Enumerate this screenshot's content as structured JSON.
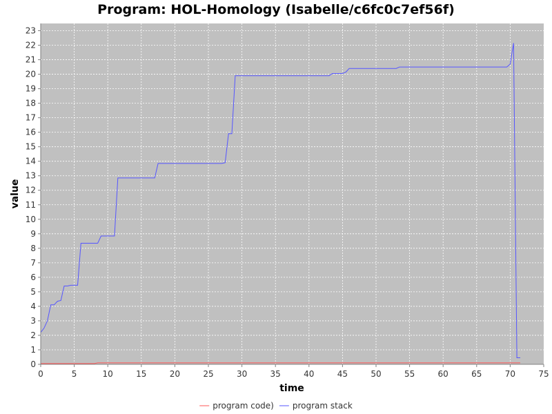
{
  "chart_data": {
    "type": "line",
    "title": "Program: HOL-Homology (Isabelle/c6fc0c7ef56f)",
    "xlabel": "time",
    "ylabel": "value",
    "xlim": [
      0,
      75
    ],
    "ylim": [
      0,
      23.5
    ],
    "x_ticks": [
      "0",
      "5",
      "10",
      "15",
      "20",
      "25",
      "30",
      "35",
      "40",
      "45",
      "50",
      "55",
      "60",
      "65",
      "70",
      "75"
    ],
    "y_ticks": [
      "0",
      "1",
      "2",
      "3",
      "4",
      "5",
      "6",
      "7",
      "8",
      "9",
      "10",
      "11",
      "12",
      "13",
      "14",
      "15",
      "16",
      "17",
      "18",
      "19",
      "20",
      "21",
      "22",
      "23"
    ],
    "grid": true,
    "legend_position": "bottom",
    "series": [
      {
        "name": "program code)",
        "color": "#ff5555",
        "points": [
          [
            0,
            0.05
          ],
          [
            8,
            0.05
          ],
          [
            8.5,
            0.1
          ],
          [
            71,
            0.1
          ],
          [
            71.5,
            0.1
          ]
        ]
      },
      {
        "name": "program stack",
        "color": "#5555ff",
        "points": [
          [
            0,
            2.2
          ],
          [
            0.5,
            2.5
          ],
          [
            1,
            3.0
          ],
          [
            1.5,
            4.1
          ],
          [
            2,
            4.1
          ],
          [
            2.5,
            4.35
          ],
          [
            3,
            4.4
          ],
          [
            3.5,
            5.4
          ],
          [
            4,
            5.4
          ],
          [
            4.5,
            5.45
          ],
          [
            5.5,
            5.45
          ],
          [
            6,
            8.35
          ],
          [
            8.5,
            8.35
          ],
          [
            9,
            8.85
          ],
          [
            11,
            8.85
          ],
          [
            11.5,
            12.85
          ],
          [
            17,
            12.85
          ],
          [
            17.5,
            13.85
          ],
          [
            27,
            13.85
          ],
          [
            27.5,
            13.9
          ],
          [
            28,
            15.9
          ],
          [
            28.5,
            15.9
          ],
          [
            29,
            19.9
          ],
          [
            43,
            19.9
          ],
          [
            43.5,
            20.05
          ],
          [
            45,
            20.05
          ],
          [
            45.5,
            20.15
          ],
          [
            46,
            20.4
          ],
          [
            53,
            20.4
          ],
          [
            53.5,
            20.5
          ],
          [
            69.5,
            20.5
          ],
          [
            70,
            20.7
          ],
          [
            70.5,
            22.15
          ],
          [
            71,
            0.45
          ],
          [
            71.5,
            0.45
          ]
        ]
      }
    ]
  }
}
